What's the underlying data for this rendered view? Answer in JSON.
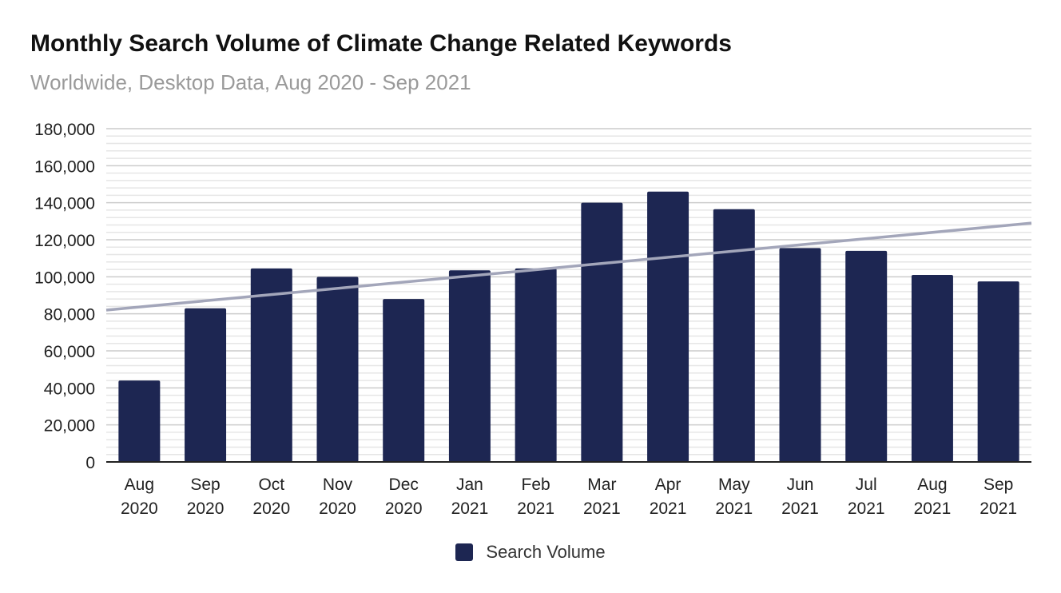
{
  "chart_data": {
    "type": "bar",
    "title": "Monthly Search Volume of Climate Change Related Keywords",
    "subtitle": "Worldwide, Desktop Data, Aug 2020 - Sep 2021",
    "categories": [
      [
        "Aug",
        "2020"
      ],
      [
        "Sep",
        "2020"
      ],
      [
        "Oct",
        "2020"
      ],
      [
        "Nov",
        "2020"
      ],
      [
        "Dec",
        "2020"
      ],
      [
        "Jan",
        "2021"
      ],
      [
        "Feb",
        "2021"
      ],
      [
        "Mar",
        "2021"
      ],
      [
        "Apr",
        "2021"
      ],
      [
        "May",
        "2021"
      ],
      [
        "Jun",
        "2021"
      ],
      [
        "Jul",
        "2021"
      ],
      [
        "Aug",
        "2021"
      ],
      [
        "Sep",
        "2021"
      ]
    ],
    "series": [
      {
        "name": "Search Volume",
        "values": [
          44000,
          83000,
          104500,
          100000,
          88000,
          103500,
          104500,
          140000,
          146000,
          136500,
          115500,
          114000,
          101000,
          97500
        ]
      }
    ],
    "trendline": {
      "type": "linear",
      "start": 82000,
      "end": 129000
    },
    "ylim": [
      0,
      180000
    ],
    "yticks": [
      0,
      20000,
      40000,
      60000,
      80000,
      100000,
      120000,
      140000,
      160000,
      180000
    ],
    "ytick_labels": [
      "0",
      "20,000",
      "40,000",
      "60,000",
      "80,000",
      "100,000",
      "120,000",
      "140,000",
      "160,000",
      "180,000"
    ],
    "minor_gridlines_per_major": 4,
    "grid": true,
    "legend_position": "bottom",
    "colors": {
      "bar": "#1d2652",
      "trend": "#a3a6ba",
      "grid_major": "#cccccc",
      "grid_minor": "#e6e6e6",
      "axis": "#222222"
    }
  }
}
